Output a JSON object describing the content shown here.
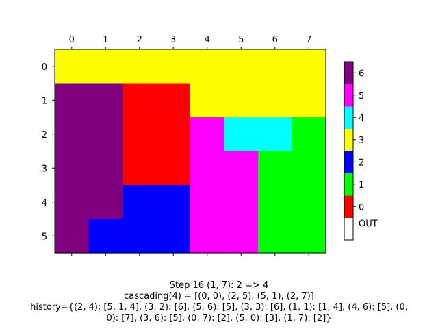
{
  "chart_data": {
    "type": "heatmap",
    "x_ticks": [
      "0",
      "1",
      "2",
      "3",
      "4",
      "5",
      "6",
      "7"
    ],
    "y_ticks": [
      "0",
      "1",
      "2",
      "3",
      "4",
      "5"
    ],
    "grid": [
      [
        3,
        3,
        3,
        3,
        3,
        3,
        3,
        3
      ],
      [
        6,
        6,
        0,
        0,
        3,
        3,
        3,
        3
      ],
      [
        6,
        6,
        0,
        0,
        5,
        4,
        4,
        1
      ],
      [
        6,
        6,
        0,
        0,
        5,
        5,
        1,
        1
      ],
      [
        6,
        6,
        2,
        2,
        5,
        5,
        1,
        1
      ],
      [
        6,
        2,
        2,
        2,
        5,
        5,
        1,
        1
      ]
    ],
    "colorbar": {
      "levels": [
        {
          "label": "OUT",
          "color": "#ffffff"
        },
        {
          "label": "0",
          "color": "#ff0000"
        },
        {
          "label": "1",
          "color": "#00ff00"
        },
        {
          "label": "2",
          "color": "#0000ff"
        },
        {
          "label": "3",
          "color": "#ffff00"
        },
        {
          "label": "4",
          "color": "#00ffff"
        },
        {
          "label": "5",
          "color": "#ff00ff"
        },
        {
          "label": "6",
          "color": "#800080"
        }
      ]
    },
    "caption_lines": [
      "Step 16  (1, 7): 2 => 4",
      "cascading(4) = [(0, 0), (2, 5), (5, 1), (2, 7)]",
      "history={(2, 4): [5, 1, 4], (3, 2): [6], (5, 6): [5], (3, 3): [6], (1, 1): [1, 4], (4, 6): [5], (0,",
      "0): [7], (3, 6): [5], (0, 7): [2], (5, 0): [3], (1, 7): [2]}"
    ]
  }
}
